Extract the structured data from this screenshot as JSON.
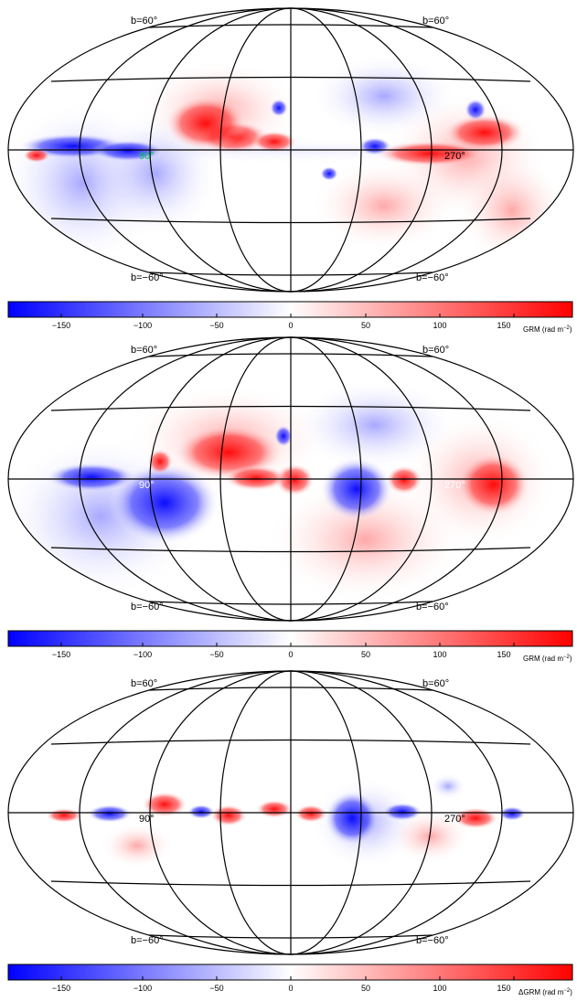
{
  "panels": [
    {
      "id": "grm-top",
      "labels": {
        "lat_north_left": "b=60°",
        "lat_north_right": "b=60°",
        "lat_south_left": "b=−60°",
        "lat_south_right": "b=−60°",
        "lon_left": "90°",
        "lon_right": "270°"
      },
      "lon_left_color": "#00c853",
      "colorbar": {
        "ticks": [
          "−150",
          "−100",
          "−50",
          "0",
          "50",
          "100",
          "150"
        ],
        "unit_prefix": "GRM",
        "unit_suffix": "(rad m",
        "unit_exp": "−2",
        "unit_close": ")"
      }
    },
    {
      "id": "grm-middle",
      "labels": {
        "lat_north_left": "b=60°",
        "lat_north_right": "b=60°",
        "lat_south_left": "b=−60°",
        "lat_south_right": "b=−60°",
        "lon_left": "90°",
        "lon_right": "270°"
      },
      "lon_left_color": "#ffffff",
      "colorbar": {
        "ticks": [
          "−150",
          "−100",
          "−50",
          "0",
          "50",
          "100",
          "150"
        ],
        "unit_prefix": "GRM",
        "unit_suffix": "(rad m",
        "unit_exp": "−2",
        "unit_close": ")"
      }
    },
    {
      "id": "dgrm-bottom",
      "labels": {
        "lat_north_left": "b=60°",
        "lat_north_right": "b=60°",
        "lat_south_left": "b=−60°",
        "lat_south_right": "b=−60°",
        "lon_left": "90°",
        "lon_right": "270°"
      },
      "lon_left_color": "#000000",
      "colorbar": {
        "ticks": [
          "−150",
          "−100",
          "−50",
          "0",
          "50",
          "100",
          "150"
        ],
        "unit_prefix": "ΔGRM",
        "unit_suffix": "(rad m",
        "unit_exp": "−2",
        "unit_close": ")"
      }
    }
  ],
  "colors": {
    "negative": "#0000ff",
    "zero": "#ffffff",
    "positive": "#ff0000",
    "grid": "#000000"
  }
}
